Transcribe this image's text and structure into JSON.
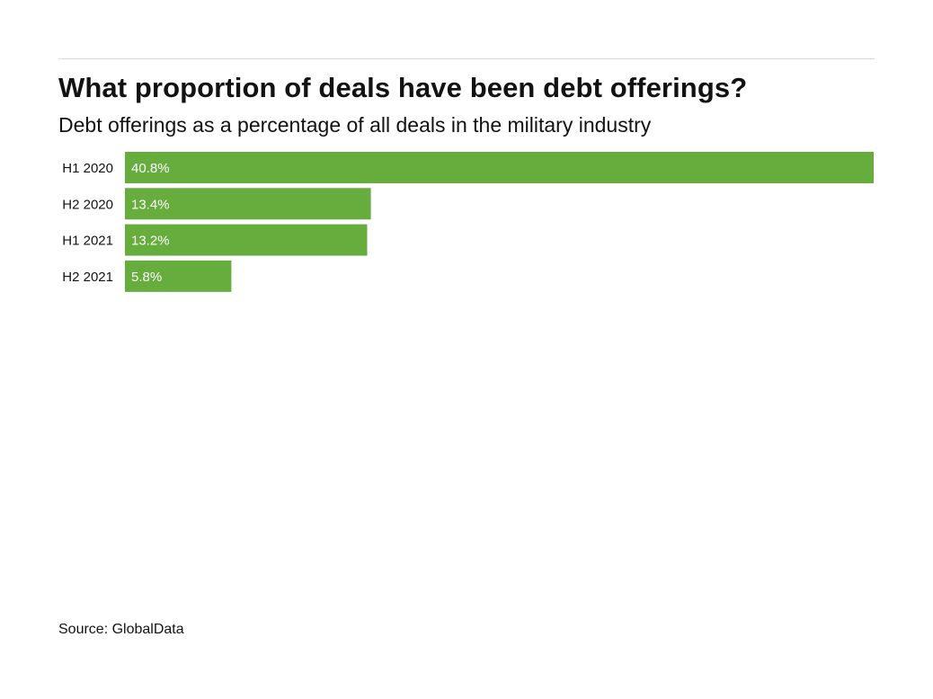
{
  "chart_data": {
    "type": "bar",
    "orientation": "horizontal",
    "title": "What proportion of deals have been debt offerings?",
    "subtitle": "Debt offerings as a percentage of all deals in the military industry",
    "categories": [
      "H1 2020",
      "H2 2020",
      "H1 2021",
      "H2 2021"
    ],
    "values": [
      40.8,
      13.4,
      13.2,
      5.8
    ],
    "value_labels": [
      "40.8%",
      "13.4%",
      "13.2%",
      "5.8%"
    ],
    "xlabel": "",
    "ylabel": "",
    "xlim": [
      0,
      40.8
    ],
    "grid": false,
    "legend": "none",
    "bar_color": "#66ad3e",
    "source": "Source: GlobalData"
  }
}
